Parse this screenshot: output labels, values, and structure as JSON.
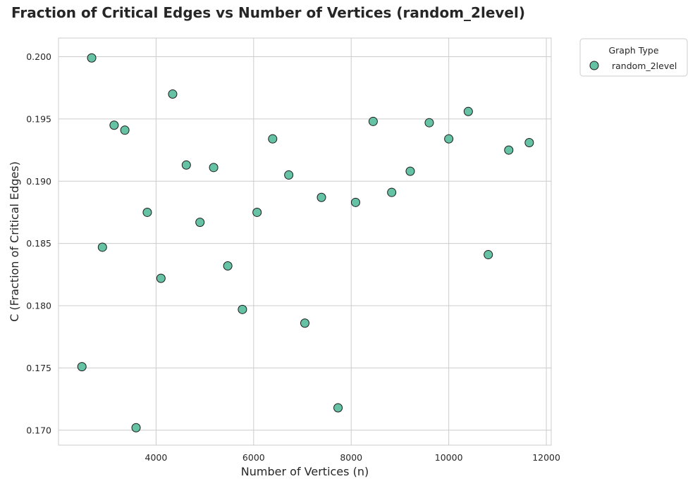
{
  "colors": {
    "point_fill": "#66c2a5",
    "point_edge": "#1a1a1a",
    "grid": "#cccccc",
    "text": "#262626"
  },
  "chart_data": {
    "type": "scatter",
    "title": "Fraction of Critical Edges vs Number of Vertices (random_2level)",
    "xlabel": "Number of Vertices (n)",
    "ylabel": "C (Fraction of Critical Edges)",
    "xlim": [
      2000,
      12100
    ],
    "ylim": [
      0.1688,
      0.2015
    ],
    "xticks": [
      4000,
      6000,
      8000,
      10000,
      12000
    ],
    "yticks": [
      0.17,
      0.175,
      0.18,
      0.185,
      0.19,
      0.195,
      0.2
    ],
    "xtick_labels": [
      "4000",
      "6000",
      "8000",
      "10000",
      "12000"
    ],
    "ytick_labels": [
      "0.170",
      "0.175",
      "0.180",
      "0.185",
      "0.190",
      "0.195",
      "0.200"
    ],
    "grid": true,
    "legend": {
      "title": "Graph Type",
      "placement": "outside-top-right"
    },
    "series": [
      {
        "name": "random_2level",
        "color": "#66c2a5",
        "points": [
          {
            "x": 2480,
            "y": 0.1751
          },
          {
            "x": 2680,
            "y": 0.1999
          },
          {
            "x": 2900,
            "y": 0.1847
          },
          {
            "x": 3140,
            "y": 0.1945
          },
          {
            "x": 3360,
            "y": 0.1941
          },
          {
            "x": 3590,
            "y": 0.1702
          },
          {
            "x": 3820,
            "y": 0.1875
          },
          {
            "x": 4100,
            "y": 0.1822
          },
          {
            "x": 4340,
            "y": 0.197
          },
          {
            "x": 4620,
            "y": 0.1913
          },
          {
            "x": 4900,
            "y": 0.1867
          },
          {
            "x": 5180,
            "y": 0.1911
          },
          {
            "x": 5470,
            "y": 0.1832
          },
          {
            "x": 5770,
            "y": 0.1797
          },
          {
            "x": 6070,
            "y": 0.1875
          },
          {
            "x": 6390,
            "y": 0.1934
          },
          {
            "x": 6720,
            "y": 0.1905
          },
          {
            "x": 7050,
            "y": 0.1786
          },
          {
            "x": 7390,
            "y": 0.1887
          },
          {
            "x": 7730,
            "y": 0.1718
          },
          {
            "x": 8090,
            "y": 0.1883
          },
          {
            "x": 8450,
            "y": 0.1948
          },
          {
            "x": 8830,
            "y": 0.1891
          },
          {
            "x": 9210,
            "y": 0.1908
          },
          {
            "x": 9600,
            "y": 0.1947
          },
          {
            "x": 10000,
            "y": 0.1934
          },
          {
            "x": 10400,
            "y": 0.1956
          },
          {
            "x": 10810,
            "y": 0.1841
          },
          {
            "x": 11230,
            "y": 0.1925
          },
          {
            "x": 11650,
            "y": 0.1931
          }
        ]
      }
    ]
  }
}
